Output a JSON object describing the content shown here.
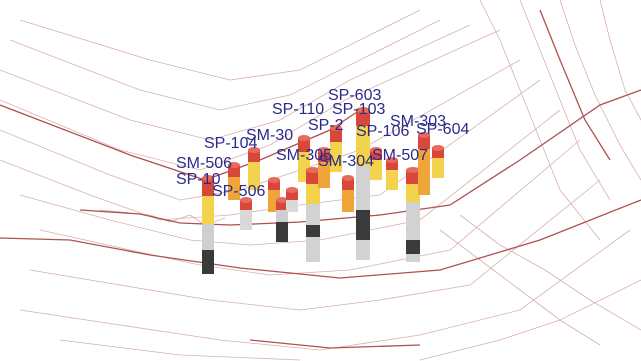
{
  "colors": {
    "background": "#ffffff",
    "contour_light": "#d8b0b0",
    "contour_dark": "#b05050",
    "label": "#2a2a8a",
    "core_red": "#d9473a",
    "core_orange": "#f0a53a",
    "core_yellow": "#f2d34b",
    "core_grey": "#c8c8c8",
    "core_dark": "#3a3a3a"
  },
  "labels": [
    "SP-603",
    "SP-110",
    "SP-103",
    "SM-303",
    "SP-604",
    "SP-2",
    "SP-106",
    "SP-104",
    "SM-30",
    "SM-305",
    "SM-304",
    "SM-507",
    "SM-506",
    "SP-10",
    "SP-506"
  ]
}
